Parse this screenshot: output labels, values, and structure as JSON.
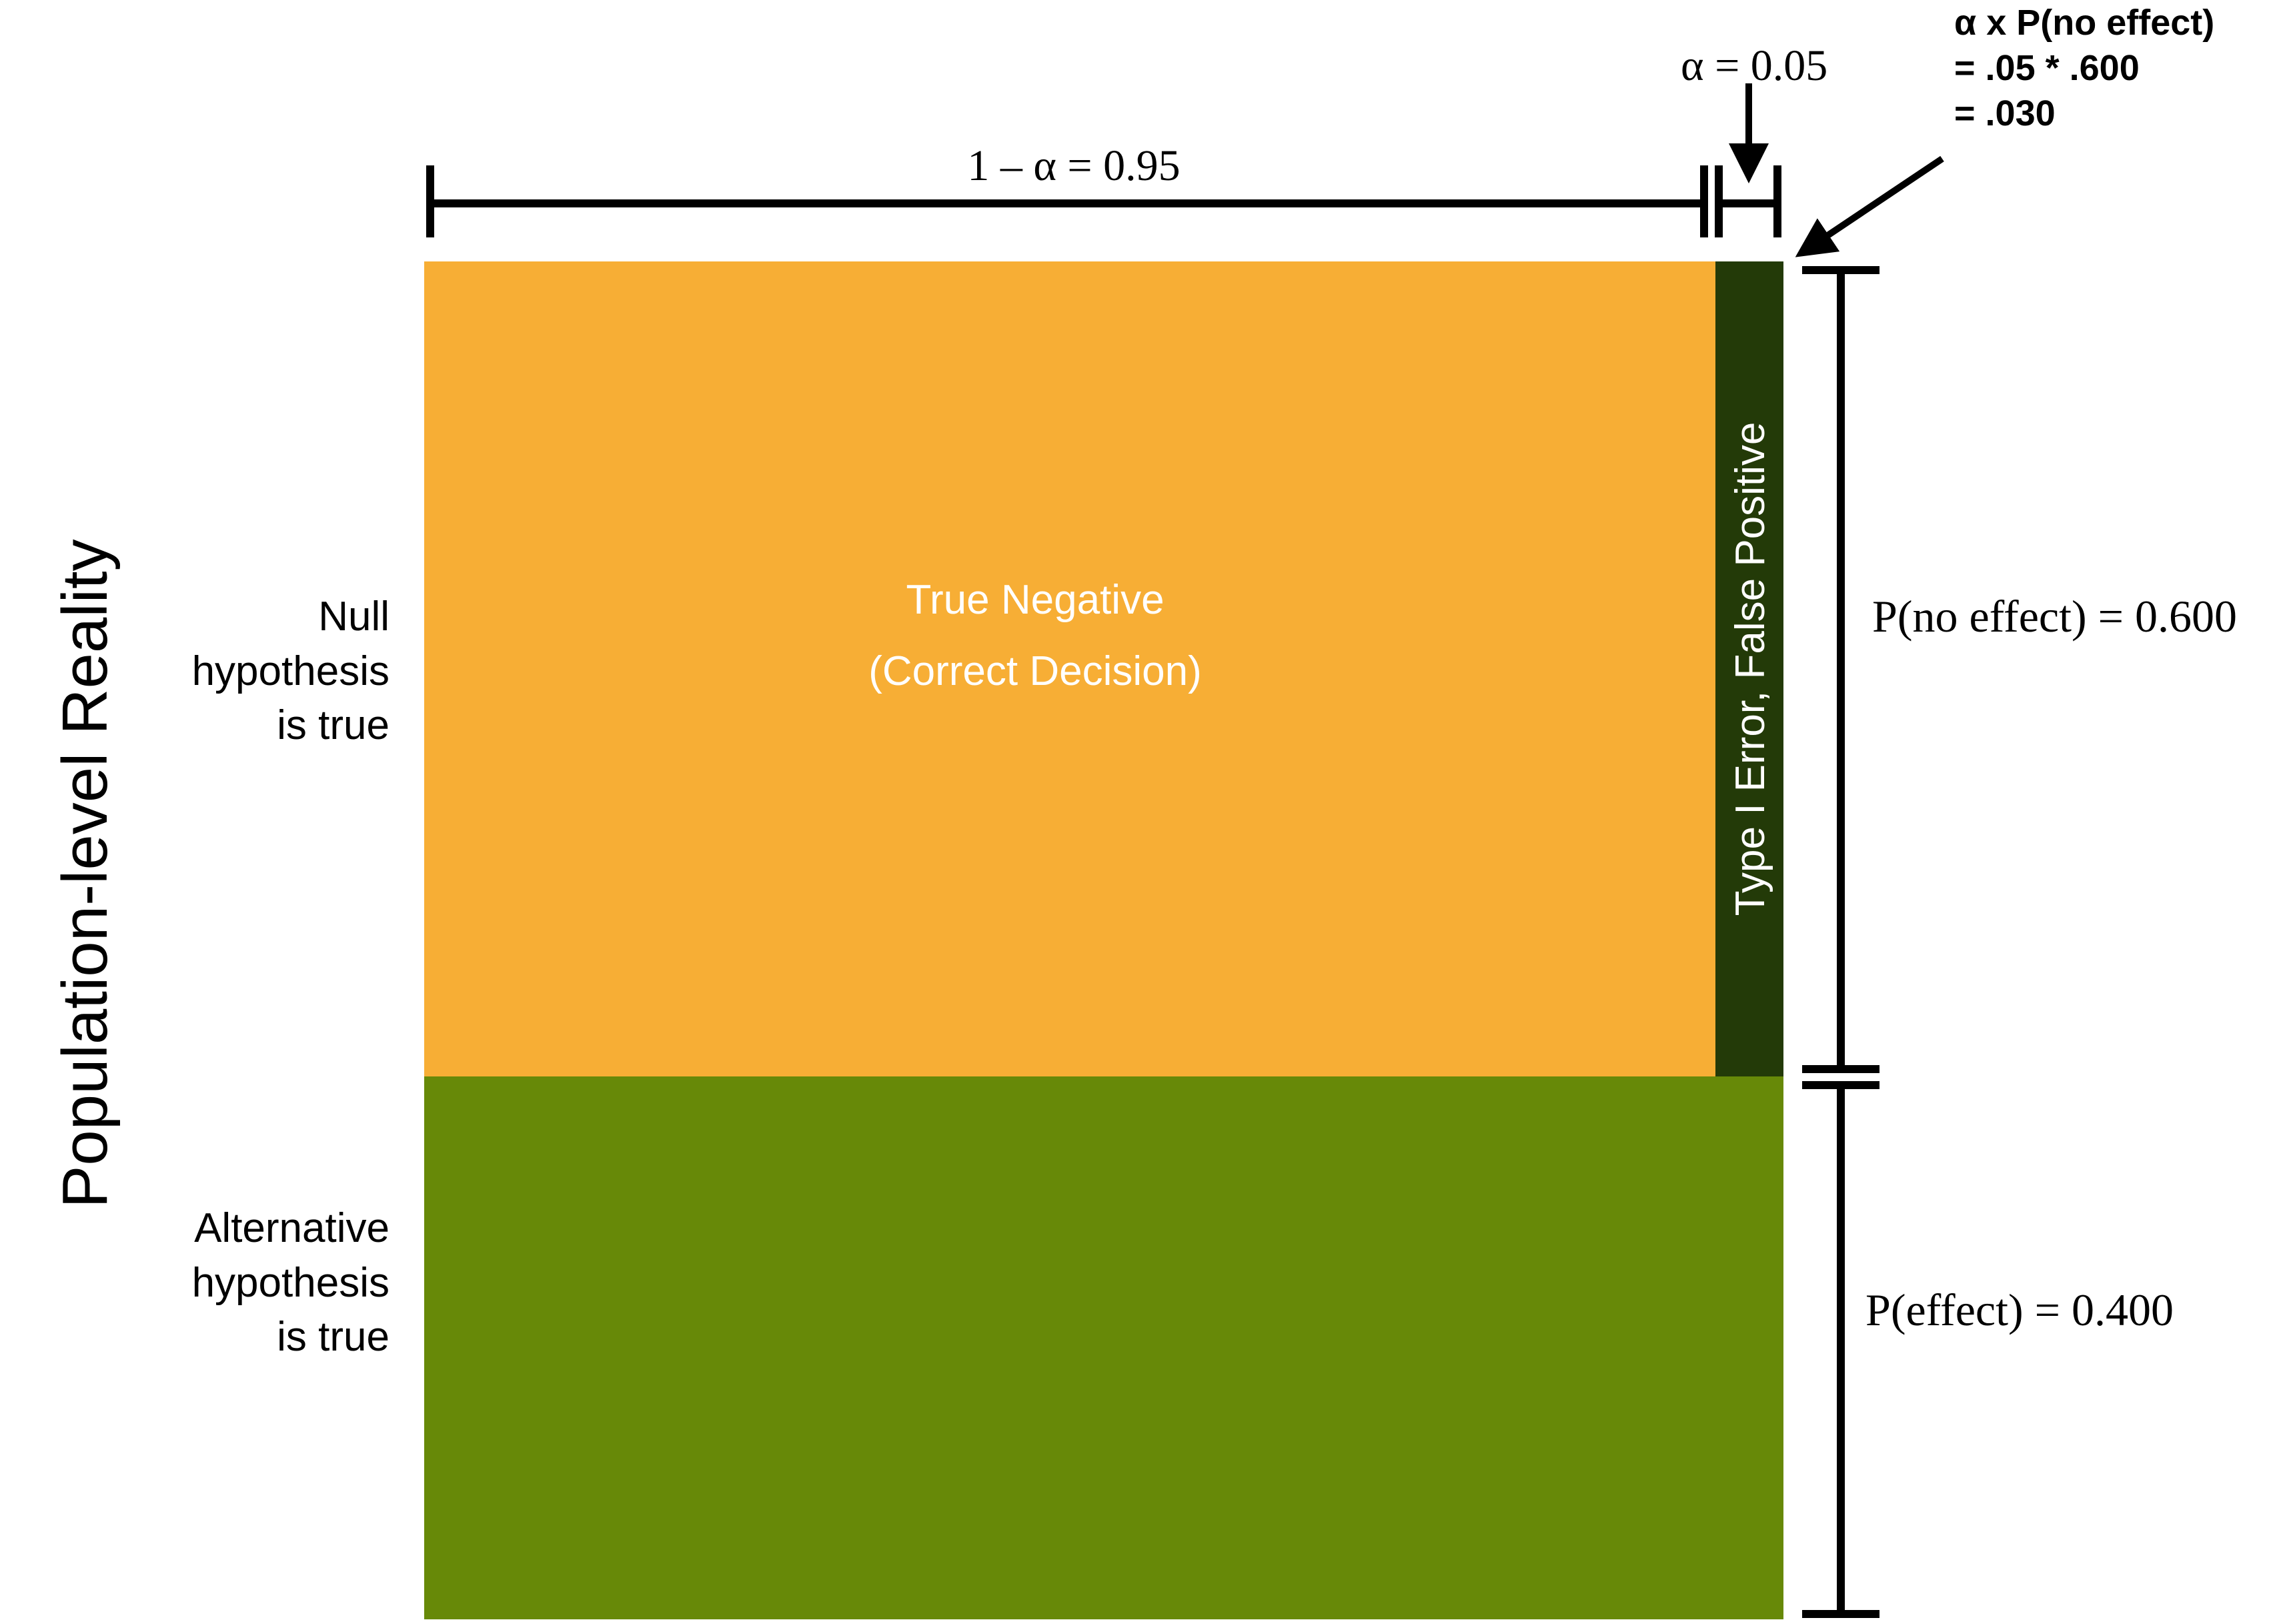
{
  "y_axis_title": "Population-level Reality",
  "rows": {
    "null_label": [
      "Null",
      "hypothesis",
      "is true"
    ],
    "alt_label": [
      "Alternative",
      "hypothesis",
      "is true"
    ]
  },
  "cells": {
    "true_negative": [
      "True Negative",
      "(Correct Decision)"
    ],
    "type1": "Type I Error, False Positive"
  },
  "top_measures": {
    "one_minus_alpha": "1 – α = 0.95",
    "alpha": "α = 0.05"
  },
  "callout": [
    "α x P(no effect)",
    "= .05 *  .600",
    "= .030"
  ],
  "right_measures": {
    "p_no_effect": "P(no effect) = 0.600",
    "p_effect": "P(effect) = 0.400"
  },
  "colors": {
    "true_negative": "#F7AE35",
    "type1_error": "#233A08",
    "alternative": "#678908",
    "cell_text": "#FFFFFF",
    "lines": "#000000"
  },
  "chart_data": {
    "type": "area",
    "alpha": 0.05,
    "one_minus_alpha": 0.95,
    "p_no_effect": 0.6,
    "p_effect": 0.4,
    "type1_error_probability": 0.03
  }
}
